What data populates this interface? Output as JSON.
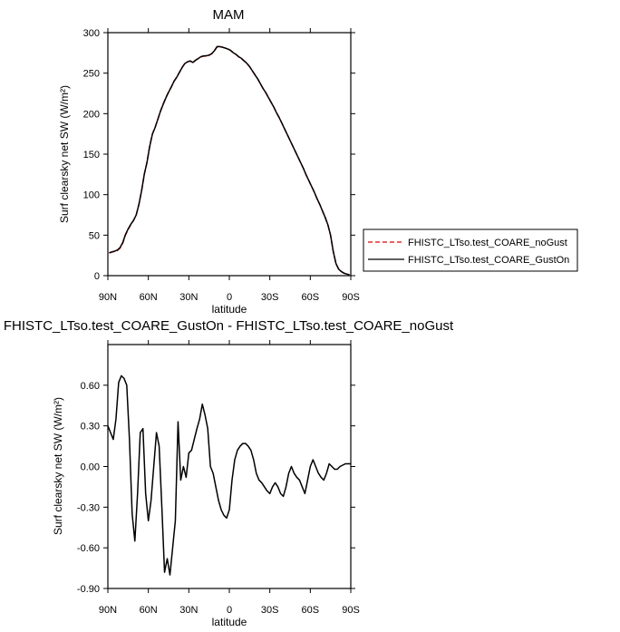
{
  "chart_data": [
    {
      "type": "line",
      "title": "MAM",
      "xlabel": "latitude",
      "ylabel": "Surf clearsky net SW (W/m²)",
      "xlim": [
        90,
        -90
      ],
      "ylim": [
        0,
        300
      ],
      "x_ticks": [
        90,
        60,
        30,
        0,
        -30,
        -60,
        -90
      ],
      "x_tick_labels": [
        "90N",
        "60N",
        "30N",
        "0",
        "30S",
        "60S",
        "90S"
      ],
      "y_ticks": [
        0,
        50,
        100,
        150,
        200,
        250,
        300
      ],
      "y_tick_labels": [
        "0",
        "50",
        "100",
        "150",
        "200",
        "250",
        "300"
      ],
      "legend_position": "right",
      "series": [
        {
          "name": "FHISTC_LTso.test_COARE_noGust",
          "color": "#e00000",
          "dash": "dashed",
          "x": [
            89,
            87,
            85,
            83,
            81,
            79,
            77,
            75,
            73,
            71,
            69,
            67,
            65,
            63,
            61,
            59,
            57,
            55,
            53,
            51,
            49,
            47,
            45,
            43,
            41,
            39,
            37,
            35,
            33,
            31,
            29,
            27,
            25,
            23,
            21,
            19,
            17,
            15,
            13,
            11,
            9,
            7,
            5,
            3,
            1,
            -1,
            -3,
            -5,
            -7,
            -9,
            -11,
            -13,
            -15,
            -17,
            -19,
            -21,
            -23,
            -25,
            -27,
            -29,
            -31,
            -33,
            -35,
            -37,
            -39,
            -41,
            -43,
            -45,
            -47,
            -49,
            -51,
            -53,
            -55,
            -57,
            -59,
            -61,
            -63,
            -65,
            -67,
            -69,
            -71,
            -73,
            -75,
            -77,
            -79,
            -81,
            -83,
            -85,
            -87,
            -89
          ],
          "y": [
            28,
            29,
            30,
            31,
            34,
            40,
            50,
            57,
            63,
            68,
            75,
            88,
            105,
            125,
            140,
            160,
            175,
            183,
            193,
            203,
            212,
            220,
            227,
            233,
            240,
            245,
            251,
            257,
            262,
            264,
            265,
            263,
            266,
            268,
            270,
            271,
            271,
            272,
            274,
            278,
            283,
            283,
            282,
            281,
            280,
            278,
            275,
            273,
            270,
            268,
            265,
            262,
            258,
            253,
            248,
            243,
            237,
            231,
            226,
            220,
            214,
            208,
            201,
            195,
            188,
            181,
            174,
            167,
            160,
            153,
            146,
            139,
            132,
            124,
            117,
            110,
            103,
            95,
            88,
            80,
            72,
            63,
            50,
            30,
            15,
            8,
            5,
            3,
            2,
            1
          ]
        },
        {
          "name": "FHISTC_LTso.test_COARE_GustOn",
          "color": "#000000",
          "dash": "solid",
          "x": [
            89,
            87,
            85,
            83,
            81,
            79,
            77,
            75,
            73,
            71,
            69,
            67,
            65,
            63,
            61,
            59,
            57,
            55,
            53,
            51,
            49,
            47,
            45,
            43,
            41,
            39,
            37,
            35,
            33,
            31,
            29,
            27,
            25,
            23,
            21,
            19,
            17,
            15,
            13,
            11,
            9,
            7,
            5,
            3,
            1,
            -1,
            -3,
            -5,
            -7,
            -9,
            -11,
            -13,
            -15,
            -17,
            -19,
            -21,
            -23,
            -25,
            -27,
            -29,
            -31,
            -33,
            -35,
            -37,
            -39,
            -41,
            -43,
            -45,
            -47,
            -49,
            -51,
            -53,
            -55,
            -57,
            -59,
            -61,
            -63,
            -65,
            -67,
            -69,
            -71,
            -73,
            -75,
            -77,
            -79,
            -81,
            -83,
            -85,
            -87,
            -89
          ],
          "y": [
            28.3,
            29.3,
            30.2,
            31.6,
            34.7,
            40.7,
            50.6,
            57.6,
            63.4,
            68.2,
            74.9,
            87.9,
            104.8,
            125.3,
            139.9,
            159.6,
            174.6,
            182.9,
            192.9,
            203.1,
            211.5,
            219.5,
            226.5,
            232.9,
            239.9,
            244.8,
            250.9,
            256.9,
            261.8,
            264.0,
            265.1,
            263.2,
            266.0,
            268.1,
            270.4,
            271.3,
            271.4,
            272.3,
            274.1,
            277.8,
            282.7,
            282.8,
            281.9,
            280.9,
            279.7,
            278.0,
            275.1,
            273.1,
            270.2,
            268.2,
            265.1,
            262.1,
            258.1,
            253.0,
            247.9,
            243.0,
            237.0,
            231.0,
            225.9,
            219.8,
            213.8,
            207.9,
            201.0,
            194.9,
            188.0,
            181.0,
            174.0,
            167.0,
            160.0,
            153.0,
            146.0,
            139.0,
            132.0,
            124.0,
            117.0,
            110.0,
            103.0,
            95.0,
            88.0,
            80.0,
            72.0,
            63.0,
            50.0,
            30.0,
            15.0,
            8.0,
            5.0,
            3.0,
            2.0,
            1.0
          ]
        }
      ]
    },
    {
      "type": "line",
      "title": "FHISTC_LTso.test_COARE_GustOn - FHISTC_LTso.test_COARE_noGust",
      "xlabel": "latitude",
      "ylabel": "Surf clearsky net SW (W/m²)",
      "xlim": [
        90,
        -90
      ],
      "ylim": [
        -0.9,
        0.9
      ],
      "x_ticks": [
        90,
        60,
        30,
        0,
        -30,
        -60,
        -90
      ],
      "x_tick_labels": [
        "90N",
        "60N",
        "30N",
        "0",
        "30S",
        "60S",
        "90S"
      ],
      "y_ticks": [
        -0.9,
        -0.6,
        -0.3,
        0.0,
        0.3,
        0.6
      ],
      "y_tick_labels": [
        "-0.90",
        "-0.60",
        "-0.30",
        "0.00",
        "0.30",
        "0.60"
      ],
      "series": [
        {
          "color": "#000000",
          "dash": "solid",
          "x": [
            90,
            88,
            86,
            84,
            82,
            80,
            78,
            76,
            74,
            72,
            70,
            68,
            66,
            64,
            62,
            60,
            58,
            56,
            54,
            52,
            50,
            48,
            46,
            44,
            42,
            40,
            38,
            36,
            34,
            32,
            30,
            28,
            26,
            24,
            22,
            20,
            18,
            16,
            14,
            12,
            10,
            8,
            6,
            4,
            2,
            0,
            -2,
            -4,
            -6,
            -8,
            -10,
            -12,
            -14,
            -16,
            -18,
            -20,
            -22,
            -24,
            -26,
            -28,
            -30,
            -32,
            -34,
            -36,
            -38,
            -40,
            -42,
            -44,
            -46,
            -48,
            -50,
            -52,
            -54,
            -56,
            -58,
            -60,
            -62,
            -64,
            -66,
            -68,
            -70,
            -72,
            -74,
            -76,
            -78,
            -80,
            -82,
            -84,
            -86,
            -88,
            -90
          ],
          "y": [
            0.3,
            0.25,
            0.2,
            0.35,
            0.62,
            0.67,
            0.65,
            0.6,
            0.2,
            -0.35,
            -0.55,
            -0.2,
            0.25,
            0.28,
            -0.2,
            -0.4,
            -0.25,
            0.0,
            0.25,
            0.15,
            -0.3,
            -0.78,
            -0.68,
            -0.8,
            -0.6,
            -0.4,
            0.33,
            -0.1,
            0.0,
            -0.08,
            0.1,
            0.12,
            0.2,
            0.28,
            0.35,
            0.46,
            0.38,
            0.28,
            0.0,
            -0.05,
            -0.15,
            -0.25,
            -0.32,
            -0.36,
            -0.38,
            -0.32,
            -0.1,
            0.05,
            0.12,
            0.15,
            0.17,
            0.17,
            0.15,
            0.12,
            0.05,
            -0.05,
            -0.1,
            -0.12,
            -0.15,
            -0.18,
            -0.2,
            -0.15,
            -0.12,
            -0.15,
            -0.2,
            -0.22,
            -0.15,
            -0.05,
            0.0,
            -0.05,
            -0.08,
            -0.1,
            -0.15,
            -0.2,
            -0.1,
            0.0,
            0.05,
            0.0,
            -0.05,
            -0.08,
            -0.1,
            -0.05,
            0.02,
            0.0,
            -0.02,
            -0.02,
            0.0,
            0.01,
            0.02,
            0.02,
            0.02
          ]
        }
      ]
    }
  ]
}
